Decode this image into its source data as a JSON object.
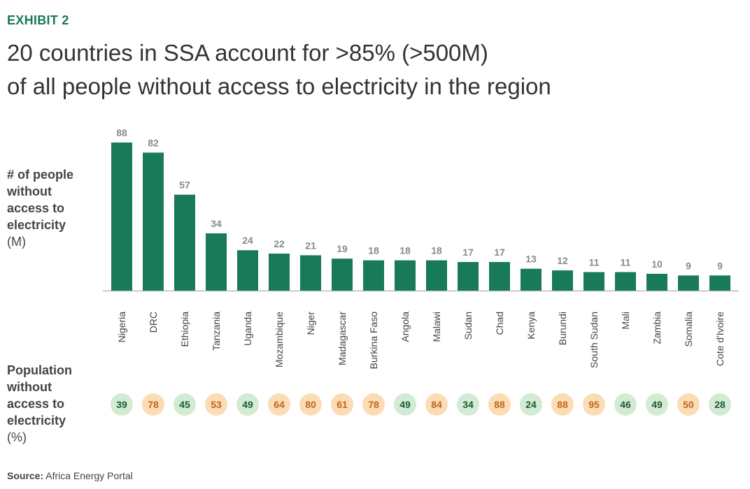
{
  "exhibit_label": "EXHIBIT 2",
  "title_line1": "20 countries in SSA account for >85% (>500M)",
  "title_line2": "of all people without access to electricity in the region",
  "source_label": "Source:",
  "source_text": "Africa Energy Portal",
  "colors": {
    "bar": "#187a58",
    "label": "#8a8a8a",
    "low_bg": "#d4ebd3",
    "low_text": "#1a5a36",
    "high_bg": "#fcdcb5",
    "high_text": "#c0661a"
  },
  "chart_data": {
    "type": "bar",
    "ylabel": "# of people without access to electricity",
    "ylabel_unit": "(M)",
    "pct_label": "Population without access to electricity",
    "pct_unit": "(%)",
    "categories": [
      "Nigeria",
      "DRC",
      "Ethiopia",
      "Tanzania",
      "Uganda",
      "Mozambique",
      "Niger",
      "Madagascar",
      "Burkina Faso",
      "Angola",
      "Malawi",
      "Sudan",
      "Chad",
      "Kenya",
      "Burundi",
      "South Sudan",
      "Mali",
      "Zambia",
      "Somalia",
      "Cote d'Ivoire"
    ],
    "values": [
      88,
      82,
      57,
      34,
      24,
      22,
      21,
      19,
      18,
      18,
      18,
      17,
      17,
      13,
      12,
      11,
      11,
      10,
      9,
      9
    ],
    "pct_without_access": [
      39,
      78,
      45,
      53,
      49,
      64,
      80,
      61,
      78,
      49,
      84,
      34,
      88,
      24,
      88,
      95,
      46,
      49,
      50,
      28
    ],
    "pct_highlight": [
      "low",
      "high",
      "low",
      "high",
      "low",
      "high",
      "high",
      "high",
      "high",
      "low",
      "high",
      "low",
      "high",
      "low",
      "high",
      "high",
      "low",
      "low",
      "high",
      "low"
    ],
    "ylim": [
      0,
      90
    ],
    "grid": false
  }
}
